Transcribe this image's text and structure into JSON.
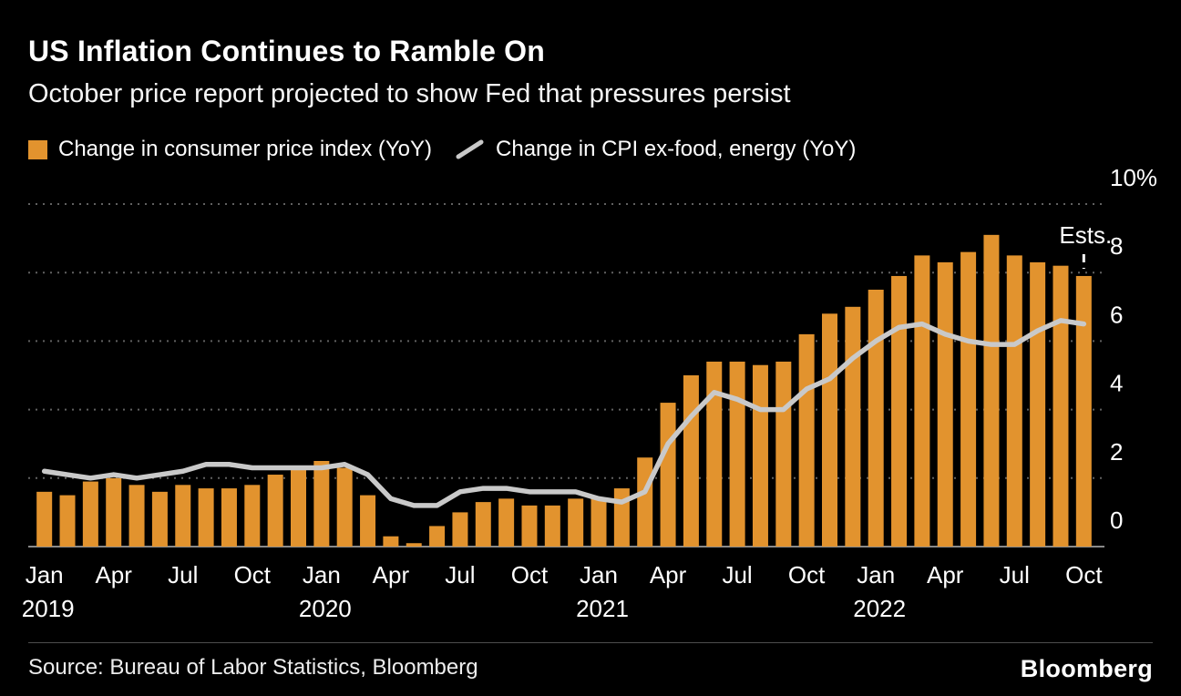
{
  "header": {
    "title": "US Inflation Continues to Ramble On",
    "subtitle": "October price report projected to show Fed that pressures persist"
  },
  "legend": {
    "bar_label": "Change in consumer price index (YoY)",
    "line_label": "Change in CPI ex-food, energy (YoY)"
  },
  "footer": {
    "source": "Source: Bureau of Labor Statistics, Bloomberg",
    "logo": "Bloomberg"
  },
  "colors": {
    "background": "#000000",
    "bar": "#E2932E",
    "line": "#C9C9C9",
    "grid": "#616161",
    "axis": "#8a8a8a",
    "text": "#FFFFFF"
  },
  "chart_data": {
    "type": "bar",
    "title": "US Inflation Continues to Ramble On",
    "subtitle": "October price report projected to show Fed that pressures persist",
    "categories": [
      "Jan 2019",
      "Feb 2019",
      "Mar 2019",
      "Apr 2019",
      "May 2019",
      "Jun 2019",
      "Jul 2019",
      "Aug 2019",
      "Sep 2019",
      "Oct 2019",
      "Nov 2019",
      "Dec 2019",
      "Jan 2020",
      "Feb 2020",
      "Mar 2020",
      "Apr 2020",
      "May 2020",
      "Jun 2020",
      "Jul 2020",
      "Aug 2020",
      "Sep 2020",
      "Oct 2020",
      "Nov 2020",
      "Dec 2020",
      "Jan 2021",
      "Feb 2021",
      "Mar 2021",
      "Apr 2021",
      "May 2021",
      "Jun 2021",
      "Jul 2021",
      "Aug 2021",
      "Sep 2021",
      "Oct 2021",
      "Nov 2021",
      "Dec 2021",
      "Jan 2022",
      "Feb 2022",
      "Mar 2022",
      "Apr 2022",
      "May 2022",
      "Jun 2022",
      "Jul 2022",
      "Aug 2022",
      "Sep 2022",
      "Oct 2022"
    ],
    "series": [
      {
        "name": "Change in consumer price index (YoY)",
        "type": "bar",
        "color": "#E2932E",
        "values": [
          1.6,
          1.5,
          1.9,
          2.0,
          1.8,
          1.6,
          1.8,
          1.7,
          1.7,
          1.8,
          2.1,
          2.3,
          2.5,
          2.3,
          1.5,
          0.3,
          0.1,
          0.6,
          1.0,
          1.3,
          1.4,
          1.2,
          1.2,
          1.4,
          1.4,
          1.7,
          2.6,
          4.2,
          5.0,
          5.4,
          5.4,
          5.3,
          5.4,
          6.2,
          6.8,
          7.0,
          7.5,
          7.9,
          8.5,
          8.3,
          8.6,
          9.1,
          8.5,
          8.3,
          8.2,
          7.9
        ]
      },
      {
        "name": "Change in CPI ex-food, energy (YoY)",
        "type": "line",
        "color": "#C9C9C9",
        "values": [
          2.2,
          2.1,
          2.0,
          2.1,
          2.0,
          2.1,
          2.2,
          2.4,
          2.4,
          2.3,
          2.3,
          2.3,
          2.3,
          2.4,
          2.1,
          1.4,
          1.2,
          1.2,
          1.6,
          1.7,
          1.7,
          1.6,
          1.6,
          1.6,
          1.4,
          1.3,
          1.6,
          3.0,
          3.8,
          4.5,
          4.3,
          4.0,
          4.0,
          4.6,
          4.9,
          5.5,
          6.0,
          6.4,
          6.5,
          6.2,
          6.0,
          5.9,
          5.9,
          6.3,
          6.6,
          6.5
        ]
      }
    ],
    "ylim": [
      0,
      10
    ],
    "yticks": [
      0,
      2,
      4,
      6,
      8,
      10
    ],
    "ytick_labels": [
      "0",
      "2",
      "4",
      "6",
      "8",
      "10%"
    ],
    "xticks": [
      {
        "i": 0,
        "label": "Jan"
      },
      {
        "i": 3,
        "label": "Apr"
      },
      {
        "i": 6,
        "label": "Jul"
      },
      {
        "i": 9,
        "label": "Oct"
      },
      {
        "i": 12,
        "label": "Jan"
      },
      {
        "i": 15,
        "label": "Apr"
      },
      {
        "i": 18,
        "label": "Jul"
      },
      {
        "i": 21,
        "label": "Oct"
      },
      {
        "i": 24,
        "label": "Jan"
      },
      {
        "i": 27,
        "label": "Apr"
      },
      {
        "i": 30,
        "label": "Jul"
      },
      {
        "i": 33,
        "label": "Oct"
      },
      {
        "i": 36,
        "label": "Jan"
      },
      {
        "i": 39,
        "label": "Apr"
      },
      {
        "i": 42,
        "label": "Jul"
      },
      {
        "i": 45,
        "label": "Oct"
      }
    ],
    "year_ticks": [
      {
        "i": 0,
        "label": "2019"
      },
      {
        "i": 12,
        "label": "2020"
      },
      {
        "i": 24,
        "label": "2021"
      },
      {
        "i": 36,
        "label": "2022"
      }
    ],
    "annotation": {
      "label": "Ests.",
      "index": 45,
      "note": "last value of each series is an estimate"
    },
    "grid": "dotted horizontal",
    "legend_position": "top",
    "y_axis_side": "right"
  }
}
